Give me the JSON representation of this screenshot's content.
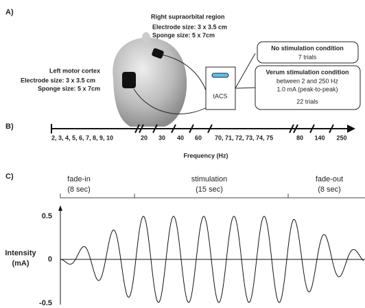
{
  "panel_a": {
    "label": "A)",
    "right_site": {
      "title": "Right supraorbital region",
      "electrode": "Electrode size: 3 x 3.5 cm",
      "sponge": "Sponge size: 5 x 7cm"
    },
    "left_site": {
      "title": "Left motor cortex",
      "electrode": "Electrode size: 3 x 3.5 cm",
      "sponge": "Sponge size: 5 x 7cm"
    },
    "device": "tACS",
    "conditions": [
      {
        "title": "No stimulation condition",
        "lines": [
          "7 trials"
        ]
      },
      {
        "title": "Verum stimulation condition",
        "lines": [
          "between 2 and 250 Hz",
          "1.0 mA (peak-to-peak)",
          "22 trials"
        ]
      }
    ]
  },
  "panel_b": {
    "label": "B)",
    "groups": [
      "2, 3, 4, 5, 6, 7, 8, 9, 10",
      "20",
      "30",
      "40",
      "60",
      "70, 71, 72, 73, 74, 75",
      "80",
      "140",
      "250"
    ],
    "axis_label": "Frequency (Hz)"
  },
  "panel_c": {
    "label": "C)",
    "phases": [
      {
        "name": "fade-in",
        "duration": "(8 sec)"
      },
      {
        "name": "stimulation",
        "duration": "(15 sec)"
      },
      {
        "name": "fade-out",
        "duration": "(8 sec)"
      }
    ],
    "y_label": [
      "Intensity",
      "(mA)"
    ],
    "yticks": [
      "0.5",
      "0",
      "-0.5"
    ]
  }
}
